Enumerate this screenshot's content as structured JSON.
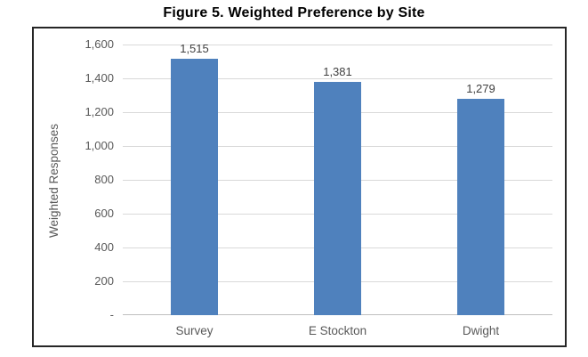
{
  "chart_data": {
    "type": "bar",
    "title": "Figure 5. Weighted Preference by Site",
    "categories": [
      "Survey",
      "E Stockton",
      "Dwight"
    ],
    "values": [
      1515,
      1381,
      1279
    ],
    "value_labels": [
      "1,515",
      "1,381",
      "1,279"
    ],
    "xlabel": "",
    "ylabel": "Weighted Responses",
    "ylim": [
      0,
      1600
    ],
    "ytick_interval": 200,
    "yticks": [
      0,
      200,
      400,
      600,
      800,
      1000,
      1200,
      1400,
      1600
    ],
    "ytick_labels": [
      "-",
      "200",
      "400",
      "600",
      "800",
      "1,000",
      "1,200",
      "1,400",
      "1,600"
    ],
    "grid": true,
    "legend": "none",
    "colors": {
      "bar_fill": "#4F81BD",
      "gridline": "#D9D9D9",
      "axis_line": "#BFBFBF",
      "tick_text": "#595959",
      "axis_title_text": "#595959",
      "value_label_text": "#404040",
      "title_text": "#000000",
      "frame_border": "#262626"
    }
  }
}
